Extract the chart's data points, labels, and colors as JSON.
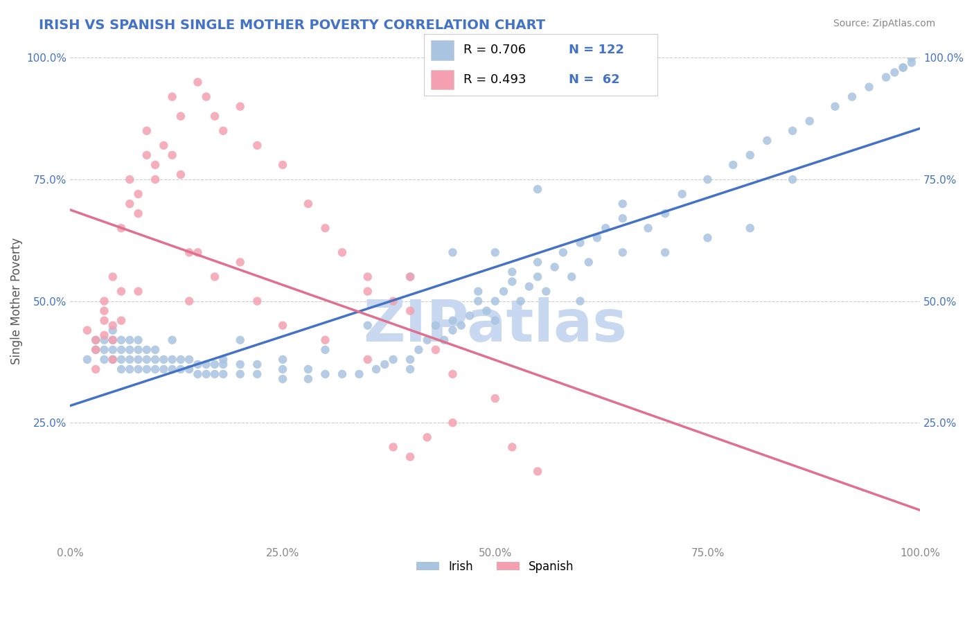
{
  "title": "IRISH VS SPANISH SINGLE MOTHER POVERTY CORRELATION CHART",
  "source": "Source: ZipAtlas.com",
  "xlabel": "",
  "ylabel": "Single Mother Poverty",
  "irish_R": 0.706,
  "irish_N": 122,
  "spanish_R": 0.493,
  "spanish_N": 62,
  "xlim": [
    0.0,
    1.0
  ],
  "ylim": [
    0.0,
    1.0
  ],
  "xtick_labels": [
    "0.0%",
    "25.0%",
    "50.0%",
    "75.0%",
    "100.0%"
  ],
  "ytick_labels": [
    "25.0%",
    "50.0%",
    "75.0%",
    "100.0%"
  ],
  "legend_labels": [
    "Irish",
    "Spanish"
  ],
  "irish_color": "#a8c4e0",
  "spanish_color": "#f4a0b0",
  "irish_line_color": "#4472c4",
  "spanish_line_color": "#e07090",
  "watermark": "ZIPatlas",
  "watermark_color": "#c8d8f0",
  "title_color": "#4472c4",
  "background_color": "#ffffff",
  "grid_color": "#cccccc",
  "irish_scatter": [
    [
      0.02,
      0.38
    ],
    [
      0.03,
      0.4
    ],
    [
      0.03,
      0.42
    ],
    [
      0.04,
      0.38
    ],
    [
      0.04,
      0.4
    ],
    [
      0.04,
      0.42
    ],
    [
      0.05,
      0.38
    ],
    [
      0.05,
      0.4
    ],
    [
      0.05,
      0.42
    ],
    [
      0.05,
      0.44
    ],
    [
      0.06,
      0.36
    ],
    [
      0.06,
      0.38
    ],
    [
      0.06,
      0.4
    ],
    [
      0.06,
      0.42
    ],
    [
      0.07,
      0.36
    ],
    [
      0.07,
      0.38
    ],
    [
      0.07,
      0.4
    ],
    [
      0.07,
      0.42
    ],
    [
      0.08,
      0.36
    ],
    [
      0.08,
      0.38
    ],
    [
      0.08,
      0.4
    ],
    [
      0.08,
      0.42
    ],
    [
      0.09,
      0.36
    ],
    [
      0.09,
      0.38
    ],
    [
      0.09,
      0.4
    ],
    [
      0.1,
      0.36
    ],
    [
      0.1,
      0.38
    ],
    [
      0.1,
      0.4
    ],
    [
      0.11,
      0.36
    ],
    [
      0.11,
      0.38
    ],
    [
      0.12,
      0.36
    ],
    [
      0.12,
      0.38
    ],
    [
      0.13,
      0.36
    ],
    [
      0.13,
      0.38
    ],
    [
      0.14,
      0.36
    ],
    [
      0.14,
      0.38
    ],
    [
      0.15,
      0.35
    ],
    [
      0.15,
      0.37
    ],
    [
      0.16,
      0.35
    ],
    [
      0.16,
      0.37
    ],
    [
      0.17,
      0.35
    ],
    [
      0.17,
      0.37
    ],
    [
      0.18,
      0.35
    ],
    [
      0.18,
      0.37
    ],
    [
      0.2,
      0.35
    ],
    [
      0.2,
      0.37
    ],
    [
      0.22,
      0.35
    ],
    [
      0.22,
      0.37
    ],
    [
      0.25,
      0.34
    ],
    [
      0.25,
      0.36
    ],
    [
      0.28,
      0.34
    ],
    [
      0.28,
      0.36
    ],
    [
      0.3,
      0.35
    ],
    [
      0.32,
      0.35
    ],
    [
      0.34,
      0.35
    ],
    [
      0.36,
      0.36
    ],
    [
      0.37,
      0.37
    ],
    [
      0.38,
      0.38
    ],
    [
      0.4,
      0.36
    ],
    [
      0.4,
      0.38
    ],
    [
      0.41,
      0.4
    ],
    [
      0.42,
      0.42
    ],
    [
      0.43,
      0.45
    ],
    [
      0.44,
      0.42
    ],
    [
      0.45,
      0.44
    ],
    [
      0.45,
      0.46
    ],
    [
      0.46,
      0.45
    ],
    [
      0.47,
      0.47
    ],
    [
      0.48,
      0.5
    ],
    [
      0.48,
      0.52
    ],
    [
      0.49,
      0.48
    ],
    [
      0.5,
      0.46
    ],
    [
      0.5,
      0.5
    ],
    [
      0.51,
      0.52
    ],
    [
      0.52,
      0.54
    ],
    [
      0.52,
      0.56
    ],
    [
      0.53,
      0.5
    ],
    [
      0.54,
      0.53
    ],
    [
      0.55,
      0.55
    ],
    [
      0.55,
      0.58
    ],
    [
      0.56,
      0.52
    ],
    [
      0.57,
      0.57
    ],
    [
      0.58,
      0.6
    ],
    [
      0.59,
      0.55
    ],
    [
      0.6,
      0.62
    ],
    [
      0.61,
      0.58
    ],
    [
      0.62,
      0.63
    ],
    [
      0.63,
      0.65
    ],
    [
      0.65,
      0.6
    ],
    [
      0.65,
      0.7
    ],
    [
      0.68,
      0.65
    ],
    [
      0.7,
      0.68
    ],
    [
      0.72,
      0.72
    ],
    [
      0.75,
      0.75
    ],
    [
      0.78,
      0.78
    ],
    [
      0.8,
      0.8
    ],
    [
      0.82,
      0.83
    ],
    [
      0.85,
      0.85
    ],
    [
      0.87,
      0.87
    ],
    [
      0.9,
      0.9
    ],
    [
      0.92,
      0.92
    ],
    [
      0.94,
      0.94
    ],
    [
      0.96,
      0.96
    ],
    [
      0.97,
      0.97
    ],
    [
      0.98,
      0.98
    ],
    [
      0.98,
      0.98
    ],
    [
      0.99,
      0.99
    ],
    [
      0.99,
      1.0
    ],
    [
      0.55,
      0.73
    ],
    [
      0.5,
      0.6
    ],
    [
      0.6,
      0.5
    ],
    [
      0.65,
      0.67
    ],
    [
      0.7,
      0.6
    ],
    [
      0.75,
      0.63
    ],
    [
      0.8,
      0.65
    ],
    [
      0.85,
      0.75
    ],
    [
      0.4,
      0.55
    ],
    [
      0.45,
      0.6
    ],
    [
      0.35,
      0.45
    ],
    [
      0.3,
      0.4
    ],
    [
      0.25,
      0.38
    ],
    [
      0.2,
      0.42
    ],
    [
      0.18,
      0.38
    ],
    [
      0.12,
      0.42
    ]
  ],
  "spanish_scatter": [
    [
      0.02,
      0.44
    ],
    [
      0.03,
      0.42
    ],
    [
      0.03,
      0.36
    ],
    [
      0.04,
      0.5
    ],
    [
      0.04,
      0.46
    ],
    [
      0.04,
      0.43
    ],
    [
      0.05,
      0.55
    ],
    [
      0.05,
      0.45
    ],
    [
      0.05,
      0.42
    ],
    [
      0.06,
      0.65
    ],
    [
      0.06,
      0.52
    ],
    [
      0.07,
      0.75
    ],
    [
      0.07,
      0.7
    ],
    [
      0.08,
      0.72
    ],
    [
      0.08,
      0.68
    ],
    [
      0.09,
      0.8
    ],
    [
      0.09,
      0.85
    ],
    [
      0.1,
      0.78
    ],
    [
      0.1,
      0.75
    ],
    [
      0.11,
      0.82
    ],
    [
      0.12,
      0.8
    ],
    [
      0.13,
      0.76
    ],
    [
      0.14,
      0.6
    ],
    [
      0.15,
      0.95
    ],
    [
      0.16,
      0.92
    ],
    [
      0.17,
      0.88
    ],
    [
      0.18,
      0.85
    ],
    [
      0.2,
      0.9
    ],
    [
      0.22,
      0.82
    ],
    [
      0.25,
      0.78
    ],
    [
      0.28,
      0.7
    ],
    [
      0.3,
      0.65
    ],
    [
      0.32,
      0.6
    ],
    [
      0.35,
      0.55
    ],
    [
      0.38,
      0.5
    ],
    [
      0.4,
      0.48
    ],
    [
      0.12,
      0.92
    ],
    [
      0.13,
      0.88
    ],
    [
      0.14,
      0.5
    ],
    [
      0.22,
      0.5
    ],
    [
      0.25,
      0.45
    ],
    [
      0.3,
      0.42
    ],
    [
      0.35,
      0.38
    ],
    [
      0.38,
      0.2
    ],
    [
      0.4,
      0.18
    ],
    [
      0.42,
      0.22
    ],
    [
      0.45,
      0.25
    ],
    [
      0.15,
      0.6
    ],
    [
      0.17,
      0.55
    ],
    [
      0.2,
      0.58
    ],
    [
      0.08,
      0.52
    ],
    [
      0.06,
      0.46
    ],
    [
      0.05,
      0.38
    ],
    [
      0.35,
      0.52
    ],
    [
      0.4,
      0.55
    ],
    [
      0.43,
      0.4
    ],
    [
      0.45,
      0.35
    ],
    [
      0.5,
      0.3
    ],
    [
      0.52,
      0.2
    ],
    [
      0.55,
      0.15
    ],
    [
      0.04,
      0.48
    ],
    [
      0.03,
      0.4
    ]
  ]
}
